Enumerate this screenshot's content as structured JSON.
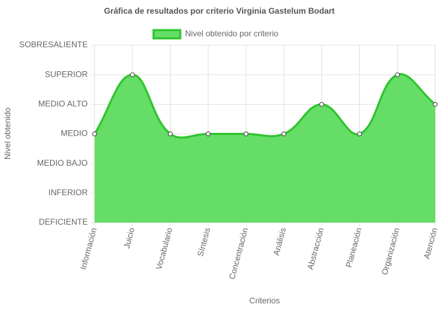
{
  "chart_data": {
    "type": "area",
    "title": "Gráfica de resultados por criterio Virginia Gastelum Bodart",
    "x_label": "Criterios",
    "y_label": "Nivel obtenido",
    "categories": [
      "Información",
      "Juicio",
      "Vocabulario",
      "Síntesis",
      "Concentración",
      "Análisis",
      "Abstracción",
      "Planeación",
      "Organización",
      "Atención"
    ],
    "series": [
      {
        "name": "Nivel obtenido por criterio",
        "color": "#2dc52d",
        "fill": "#66dd66",
        "values": [
          3,
          5,
          3,
          3,
          3,
          3,
          4,
          3,
          5,
          4
        ]
      }
    ],
    "ylim": [
      0,
      6
    ],
    "yticks": [
      {
        "value": 0,
        "label": "DEFICIENTE"
      },
      {
        "value": 1,
        "label": "INFERIOR"
      },
      {
        "value": 2,
        "label": "MEDIO BAJO"
      },
      {
        "value": 3,
        "label": "MEDIO"
      },
      {
        "value": 4,
        "label": "MEDIO ALTO"
      },
      {
        "value": 5,
        "label": "SUPERIOR"
      },
      {
        "value": 6,
        "label": "SOBRESALIENTE"
      }
    ],
    "grid": true,
    "legend": "top"
  }
}
